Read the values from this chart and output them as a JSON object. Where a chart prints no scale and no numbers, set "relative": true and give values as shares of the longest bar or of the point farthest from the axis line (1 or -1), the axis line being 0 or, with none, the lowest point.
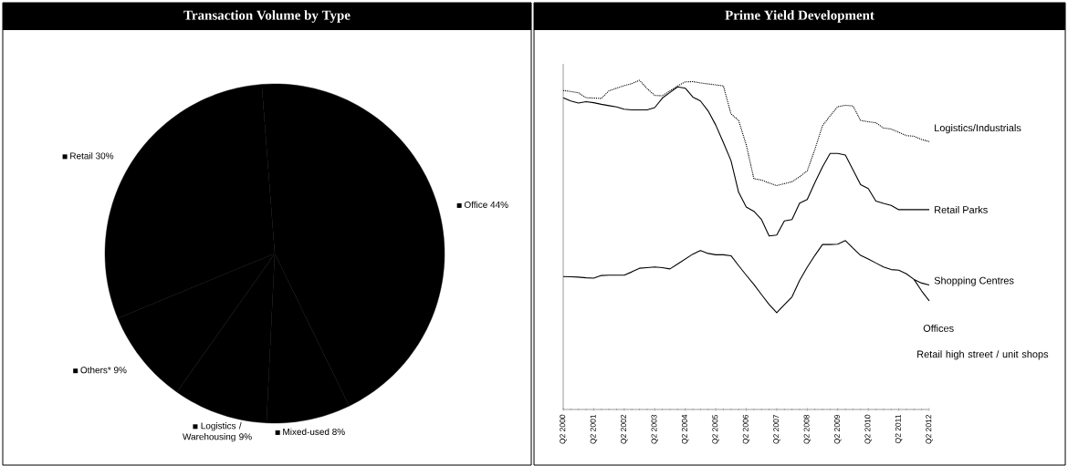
{
  "chart_data": [
    {
      "type": "pie",
      "title": "Transaction Volume by Type",
      "categories": [
        "Office",
        "Retail",
        "Others*",
        "Logistics / Warehousing",
        "Mixed-used"
      ],
      "values": [
        44,
        30,
        9,
        9,
        8
      ],
      "colors": [
        "#000000",
        "#000000",
        "#000000",
        "#000000",
        "#000000"
      ],
      "value_labels": [
        "44%",
        "30%",
        "9%",
        "9%",
        "8%"
      ],
      "legend": "left"
    },
    {
      "type": "line",
      "title": "Prime Yield Development",
      "relative": true,
      "categories": [
        "Q2 2000",
        null,
        null,
        null,
        "Q2 2001",
        null,
        null,
        null,
        "Q2 2002",
        null,
        null,
        null,
        "Q2 2003",
        null,
        null,
        null,
        "Q2 2004",
        null,
        null,
        null,
        "Q2 2005",
        null,
        null,
        null,
        "Q2 2006",
        null,
        null,
        null,
        "Q2 2007",
        null,
        null,
        null,
        "Q2 2008",
        null,
        null,
        null,
        "Q2 2009",
        null,
        null,
        null,
        "Q2 2010",
        null,
        null,
        null,
        "Q2 2011",
        null,
        null,
        null,
        "Q2 2012"
      ],
      "series": [
        {
          "name": "Logistics/Industrials",
          "color": "#000000",
          "line_style": "dotted",
          "values": [
            0.969,
            0.966,
            0.962,
            0.947,
            0.946,
            0.945,
            0.968,
            0.976,
            0.984,
            0.99,
            1.0,
            0.975,
            0.954,
            0.953,
            0.968,
            0.983,
            0.995,
            0.996,
            0.992,
            0.989,
            0.986,
            0.983,
            0.898,
            0.878,
            0.804,
            0.701,
            0.697,
            0.688,
            0.68,
            0.686,
            0.692,
            0.707,
            0.725,
            0.79,
            0.862,
            0.892,
            0.92,
            0.924,
            0.922,
            0.878,
            0.874,
            0.871,
            0.855,
            0.852,
            0.842,
            0.832,
            0.83,
            0.82,
            0.814
          ]
        },
        {
          "name": "Retail Parks",
          "color": "#000000",
          "line_style": "solid",
          "values": [
            0.947,
            0.937,
            0.931,
            0.935,
            0.932,
            0.927,
            0.923,
            0.919,
            0.912,
            0.91,
            0.91,
            0.91,
            0.917,
            0.946,
            0.963,
            0.98,
            0.976,
            0.949,
            0.937,
            0.907,
            0.864,
            0.811,
            0.756,
            0.66,
            0.615,
            0.602,
            0.577,
            0.527,
            0.53,
            0.573,
            0.577,
            0.627,
            0.638,
            0.689,
            0.737,
            0.778,
            0.778,
            0.773,
            0.728,
            0.683,
            0.671,
            0.633,
            0.626,
            0.62,
            0.607,
            0.607,
            0.607,
            0.607,
            0.607
          ]
        },
        {
          "name": "Shopping Centres",
          "color": "#000000",
          "line_style": "solid",
          "values": [
            0.404,
            0.403,
            0.402,
            0.4,
            0.399,
            0.407,
            0.408,
            0.408,
            0.408,
            0.418,
            0.429,
            0.431,
            0.433,
            0.431,
            0.427,
            0.442,
            0.457,
            0.472,
            0.483,
            0.474,
            0.47,
            0.47,
            0.467,
            0.437,
            0.408,
            0.38,
            0.349,
            0.319,
            0.294,
            0.318,
            0.342,
            0.392,
            0.432,
            0.468,
            0.501,
            0.501,
            0.502,
            0.513,
            0.49,
            0.468,
            0.457,
            0.445,
            0.433,
            0.425,
            0.423,
            0.412,
            0.395,
            0.384,
            0.378
          ]
        },
        {
          "name": "Offices",
          "color": "#000000",
          "line_style": "solid",
          "values": [
            null,
            null,
            null,
            null,
            null,
            null,
            null,
            null,
            null,
            null,
            null,
            null,
            null,
            null,
            null,
            null,
            null,
            null,
            null,
            null,
            null,
            null,
            null,
            null,
            null,
            null,
            null,
            null,
            null,
            null,
            null,
            null,
            null,
            null,
            null,
            null,
            null,
            null,
            null,
            null,
            null,
            null,
            null,
            null,
            null,
            null,
            0.395,
            0.36,
            0.33
          ]
        }
      ],
      "annotations": [
        "Retail high street / unit shops"
      ]
    }
  ]
}
